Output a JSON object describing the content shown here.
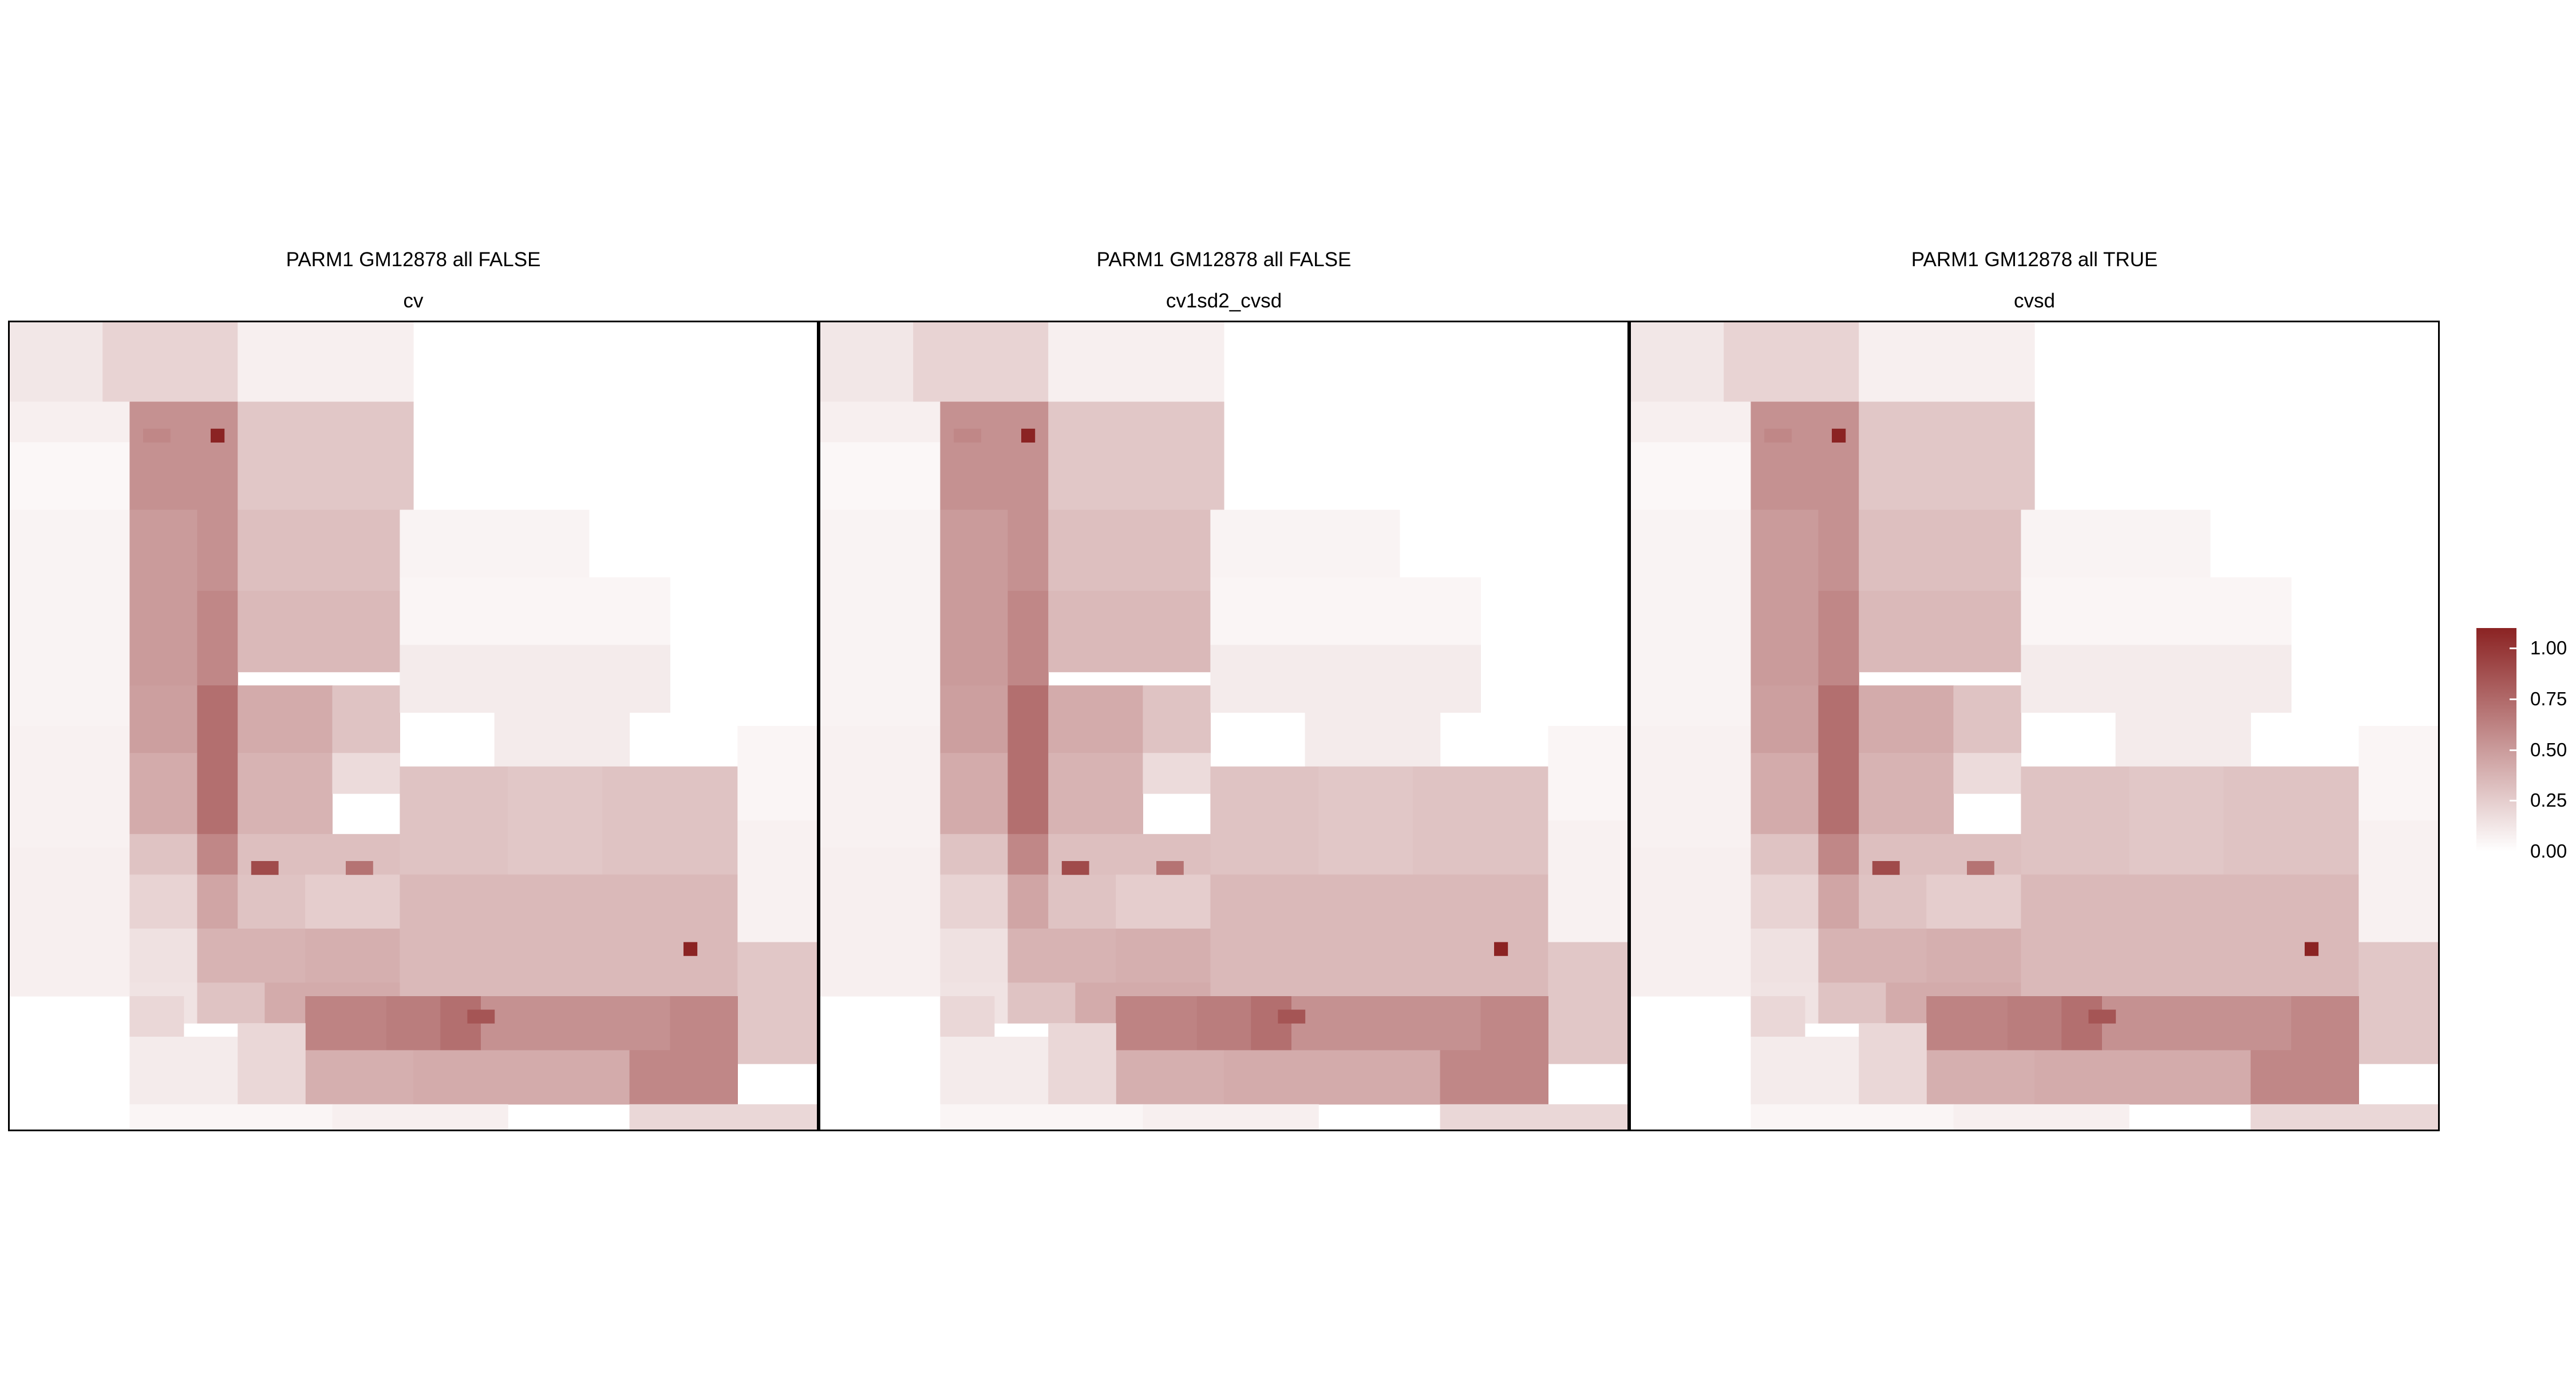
{
  "chart_data": [
    {
      "type": "heatmap",
      "title": "PARM1 GM12878 all FALSE",
      "subtitle": "cv",
      "xlabel": "",
      "ylabel": "",
      "legend": "right",
      "grid": false
    },
    {
      "type": "heatmap",
      "title": "PARM1 GM12878 all FALSE",
      "subtitle": "cv1sd2_cvsd",
      "xlabel": "",
      "ylabel": "",
      "legend": "right",
      "grid": false
    },
    {
      "type": "heatmap",
      "title": "PARM1 GM12878 all TRUE",
      "subtitle": "cvsd",
      "xlabel": "",
      "ylabel": "",
      "legend": "right",
      "grid": false
    }
  ],
  "heatmap_cells": {
    "grid_size": 60,
    "note_units": "cells are [row, col, rowspan, colspan, value] on a 60x60 bin grid; value on colour scale 0-1.1",
    "cells": [
      [
        0,
        0,
        8,
        7,
        0.12
      ],
      [
        0,
        7,
        6,
        10,
        0.22
      ],
      [
        0,
        17,
        6,
        13,
        0.08
      ],
      [
        6,
        0,
        3,
        9,
        0.08
      ],
      [
        9,
        0,
        5,
        9,
        0.04
      ],
      [
        14,
        0,
        16,
        9,
        0.06
      ],
      [
        30,
        0,
        9,
        9,
        0.07
      ],
      [
        39,
        0,
        11,
        9,
        0.08
      ],
      [
        6,
        9,
        8,
        8,
        0.55
      ],
      [
        6,
        17,
        8,
        13,
        0.28
      ],
      [
        14,
        9,
        6,
        5,
        0.5
      ],
      [
        14,
        14,
        6,
        3,
        0.55
      ],
      [
        14,
        17,
        6,
        12,
        0.32
      ],
      [
        20,
        9,
        7,
        5,
        0.5
      ],
      [
        20,
        14,
        7,
        3,
        0.6
      ],
      [
        20,
        17,
        6,
        12,
        0.35
      ],
      [
        27,
        9,
        5,
        5,
        0.48
      ],
      [
        27,
        14,
        5,
        3,
        0.72
      ],
      [
        27,
        17,
        5,
        7,
        0.42
      ],
      [
        27,
        24,
        5,
        5,
        0.3
      ],
      [
        32,
        9,
        6,
        5,
        0.42
      ],
      [
        32,
        14,
        6,
        3,
        0.72
      ],
      [
        32,
        17,
        6,
        7,
        0.38
      ],
      [
        32,
        24,
        3,
        5,
        0.18
      ],
      [
        38,
        9,
        3,
        5,
        0.3
      ],
      [
        38,
        14,
        3,
        3,
        0.6
      ],
      [
        38,
        17,
        3,
        12,
        0.32
      ],
      [
        41,
        9,
        4,
        5,
        0.22
      ],
      [
        41,
        14,
        4,
        3,
        0.45
      ],
      [
        41,
        17,
        4,
        5,
        0.3
      ],
      [
        41,
        22,
        4,
        7,
        0.25
      ],
      [
        45,
        9,
        4,
        5,
        0.15
      ],
      [
        45,
        14,
        4,
        8,
        0.38
      ],
      [
        45,
        22,
        4,
        7,
        0.4
      ],
      [
        49,
        9,
        3,
        5,
        0.14
      ],
      [
        49,
        14,
        3,
        5,
        0.3
      ],
      [
        49,
        19,
        3,
        10,
        0.42
      ],
      [
        14,
        29,
        5,
        14,
        0.06
      ],
      [
        19,
        29,
        5,
        20,
        0.05
      ],
      [
        24,
        29,
        5,
        20,
        0.1
      ],
      [
        29,
        36,
        4,
        10,
        0.1
      ],
      [
        33,
        46,
        7,
        8,
        0.15
      ],
      [
        33,
        29,
        8,
        8,
        0.3
      ],
      [
        33,
        37,
        8,
        7,
        0.28
      ],
      [
        33,
        44,
        8,
        10,
        0.3
      ],
      [
        41,
        29,
        9,
        8,
        0.35
      ],
      [
        41,
        37,
        9,
        7,
        0.35
      ],
      [
        41,
        44,
        9,
        10,
        0.35
      ],
      [
        30,
        54,
        7,
        6,
        0.05
      ],
      [
        37,
        54,
        9,
        6,
        0.07
      ],
      [
        46,
        54,
        9,
        6,
        0.28
      ],
      [
        50,
        22,
        4,
        6,
        0.62
      ],
      [
        50,
        28,
        4,
        4,
        0.65
      ],
      [
        50,
        32,
        4,
        3,
        0.72
      ],
      [
        50,
        35,
        4,
        4,
        0.55
      ],
      [
        50,
        39,
        4,
        6,
        0.55
      ],
      [
        50,
        45,
        4,
        4,
        0.55
      ],
      [
        50,
        49,
        4,
        5,
        0.6
      ],
      [
        54,
        22,
        4,
        8,
        0.4
      ],
      [
        54,
        30,
        4,
        16,
        0.42
      ],
      [
        54,
        46,
        4,
        8,
        0.6
      ],
      [
        58,
        46,
        8,
        14,
        0.2
      ],
      [
        66,
        46,
        10,
        14,
        0.12
      ],
      [
        50,
        9,
        3,
        4,
        0.2
      ],
      [
        53,
        9,
        5,
        8,
        0.1
      ],
      [
        58,
        9,
        6,
        8,
        0.05
      ],
      [
        52,
        17,
        6,
        5,
        0.2
      ],
      [
        58,
        17,
        6,
        7,
        0.05
      ],
      [
        58,
        24,
        8,
        13,
        0.08
      ]
    ],
    "accents": [
      [
        8,
        15,
        1,
        1,
        1.1
      ],
      [
        8,
        10,
        1,
        2,
        0.6
      ],
      [
        46,
        50,
        1,
        1,
        1.1
      ],
      [
        40,
        18,
        1,
        2,
        0.9
      ],
      [
        40,
        25,
        1,
        2,
        0.7
      ],
      [
        51,
        34,
        1,
        2,
        0.85
      ]
    ]
  },
  "legend": {
    "title": "",
    "labels": [
      "1.00",
      "0.75",
      "0.50",
      "0.25",
      "0.00"
    ],
    "values": [
      1.0,
      0.75,
      0.5,
      0.25,
      0.0
    ],
    "min": 0,
    "max": 1.1,
    "low_color": "#ffffff",
    "high_color": "#8b2323"
  }
}
